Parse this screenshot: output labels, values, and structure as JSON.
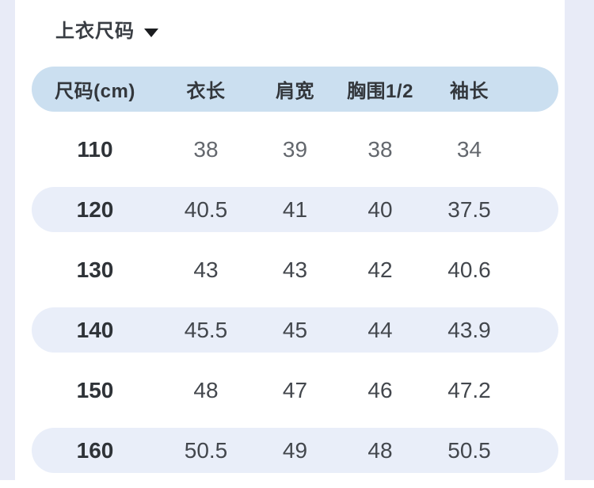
{
  "page": {
    "background": "#ffffff",
    "gutter_color": "#e8ebf7"
  },
  "title": {
    "label": "上衣尺码",
    "dropdown_icon": "chevron-down-icon"
  },
  "table": {
    "header_bg": "#cbdff0",
    "stripe_bg": "#e9eef9",
    "columns": [
      "尺码(cm)",
      "衣长",
      "肩宽",
      "胸围1/2",
      "袖长"
    ],
    "rows": [
      {
        "size": "110",
        "values": [
          "38",
          "39",
          "38",
          "34"
        ]
      },
      {
        "size": "120",
        "values": [
          "40.5",
          "41",
          "40",
          "37.5"
        ]
      },
      {
        "size": "130",
        "values": [
          "43",
          "43",
          "42",
          "40.6"
        ]
      },
      {
        "size": "140",
        "values": [
          "45.5",
          "45",
          "44",
          "43.9"
        ]
      },
      {
        "size": "150",
        "values": [
          "48",
          "47",
          "46",
          "47.2"
        ]
      },
      {
        "size": "160",
        "values": [
          "50.5",
          "49",
          "48",
          "50.5"
        ]
      }
    ]
  }
}
